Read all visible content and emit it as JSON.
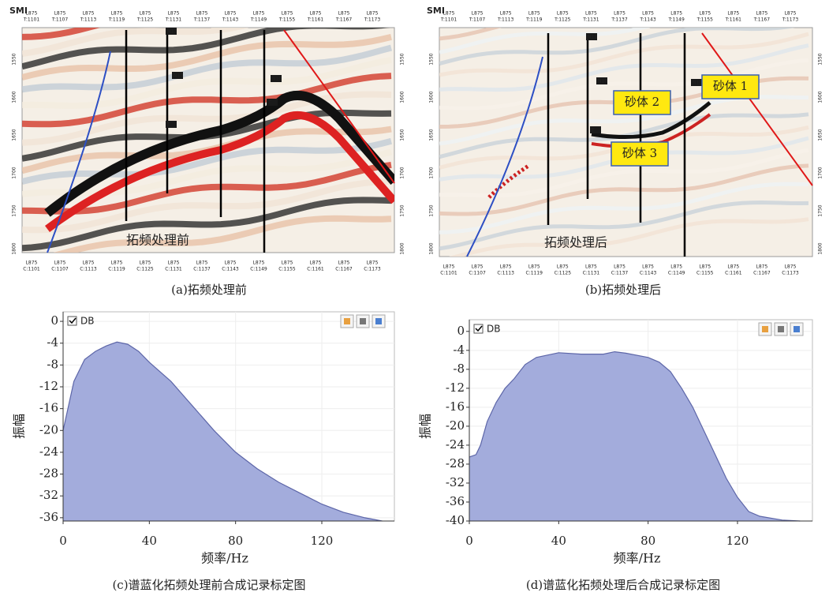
{
  "figures": [
    {
      "brand": "SMI",
      "caption": "(a)拓频处理前",
      "overlay": "拓频处理前",
      "line": "L875",
      "top": [
        "T:1101",
        "T:1107",
        "T:1113",
        "T:1119",
        "T:1125",
        "T:1131",
        "T:1137",
        "T:1143",
        "T:1149",
        "T:1155",
        "T:1161",
        "T:1167",
        "T:1173"
      ],
      "bottom": [
        "C:1101",
        "C:1107",
        "C:1113",
        "C:1119",
        "C:1125",
        "C:1131",
        "C:1137",
        "C:1143",
        "C:1149",
        "C:1155",
        "C:1161",
        "C:1167",
        "C:1173"
      ],
      "depth": [
        1550,
        1600,
        1650,
        1700,
        1750,
        1800
      ],
      "markers": [
        "N11",
        "N10",
        "T",
        "N10",
        "T"
      ]
    },
    {
      "brand": "SMI",
      "caption": "(b)拓频处理后",
      "overlay": "拓频处理后",
      "line": "L875",
      "top": [
        "T:1101",
        "T:1107",
        "T:1113",
        "T:1119",
        "T:1125",
        "T:1131",
        "T:1137",
        "T:1143",
        "T:1149",
        "T:1155",
        "T:1161",
        "T:1167",
        "T:1173"
      ],
      "bottom": [
        "C:1101",
        "C:1107",
        "C:1113",
        "C:1119",
        "C:1125",
        "C:1131",
        "C:1137",
        "C:1143",
        "C:1149",
        "C:1155",
        "C:1161",
        "C:1167",
        "C:1173"
      ],
      "depth": [
        1550,
        1600,
        1650,
        1700,
        1750,
        1800
      ],
      "markers": [
        "N11",
        "N10",
        "N10",
        "T"
      ],
      "sand_bodies": [
        "砂体 1",
        "砂体 2",
        "砂体 3"
      ]
    }
  ],
  "chart_data": [
    {
      "type": "area",
      "caption": "(c)谱蓝化拓频处理前合成记录标定图",
      "xlabel": "频率/Hz",
      "ylabel": "振幅",
      "legend": "DB",
      "color": "#a3acdc",
      "x": [
        0,
        5,
        10,
        15,
        20,
        25,
        30,
        35,
        40,
        50,
        60,
        70,
        80,
        90,
        100,
        110,
        120,
        130,
        140,
        148
      ],
      "values": [
        -20,
        -11,
        -7,
        -5.5,
        -4.5,
        -3.8,
        -4.2,
        -5.5,
        -7.5,
        -11,
        -15.5,
        -20,
        -24,
        -27,
        -29.5,
        -31.5,
        -33.5,
        -35,
        -36,
        -36.6
      ],
      "xlim": [
        0,
        150
      ],
      "ylim": [
        -36.6,
        0.3
      ],
      "xticks": [
        0,
        40,
        80,
        120
      ],
      "yticks": [
        0,
        -4,
        -8,
        -12,
        -16,
        -20,
        -24,
        -28,
        -32,
        -36
      ],
      "grid": true
    },
    {
      "type": "area",
      "caption": "(d)谱蓝化拓频处理后合成记录标定图",
      "xlabel": "频率/Hz",
      "ylabel": "振幅",
      "legend": "DB",
      "color": "#a3acdc",
      "x": [
        0,
        3,
        5,
        8,
        12,
        16,
        20,
        25,
        30,
        40,
        50,
        60,
        65,
        70,
        80,
        85,
        90,
        95,
        100,
        105,
        110,
        115,
        120,
        125,
        130,
        140,
        148
      ],
      "values": [
        -26.5,
        -26,
        -24,
        -19,
        -15,
        -12,
        -10,
        -7,
        -5.5,
        -4.5,
        -4.8,
        -4.8,
        -4.3,
        -4.6,
        -5.5,
        -6.5,
        -8.5,
        -12,
        -16,
        -21,
        -26,
        -31,
        -35,
        -38,
        -39,
        -39.8,
        -40
      ],
      "xlim": [
        0,
        150
      ],
      "ylim": [
        -40,
        0.8
      ],
      "xticks": [
        0,
        40,
        80,
        120
      ],
      "yticks": [
        0,
        -4,
        -8,
        -12,
        -16,
        -20,
        -24,
        -28,
        -32,
        -36,
        -40
      ],
      "grid": true
    }
  ]
}
